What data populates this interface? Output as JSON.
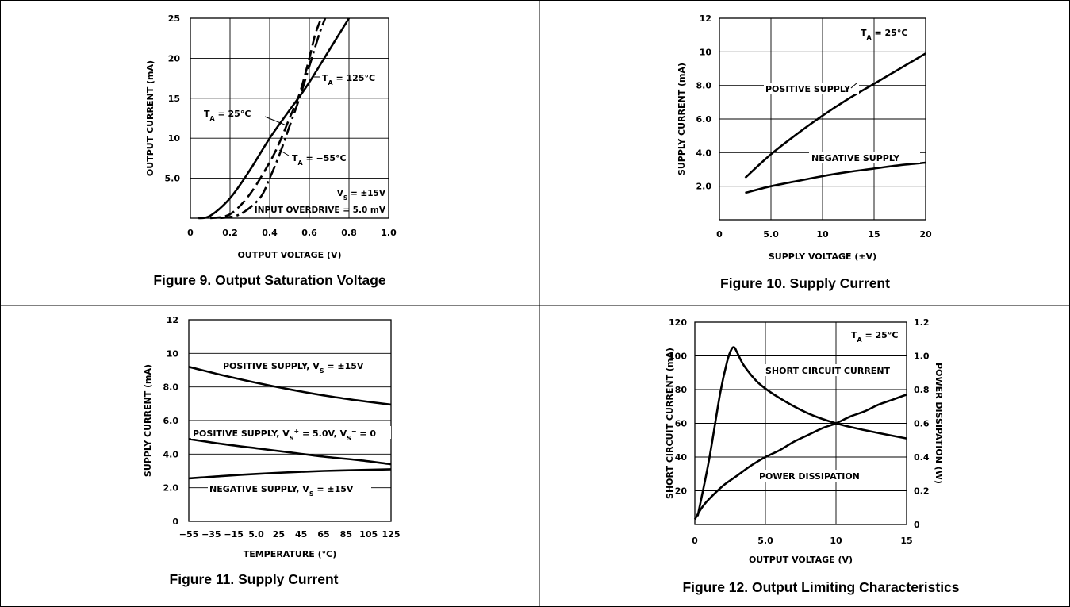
{
  "captions": {
    "fig9": "Figure 9. Output Saturation Voltage",
    "fig10": "Figure 10. Supply Current",
    "fig11": "Figure 11. Supply Current",
    "fig12": "Figure 12. Output Limiting Characteristics"
  },
  "chart_data": [
    {
      "id": "fig9",
      "type": "line",
      "xlabel": "OUTPUT VOLTAGE (V)",
      "ylabel": "OUTPUT CURRENT (mA)",
      "xlim": [
        0,
        1.0
      ],
      "ylim": [
        0,
        25
      ],
      "xticks": [
        0,
        0.2,
        0.4,
        0.6,
        0.8,
        1.0
      ],
      "xtick_labels": [
        "0",
        "0.2",
        "0.4",
        "0.6",
        "0.8",
        "1.0"
      ],
      "yticks": [
        5,
        10,
        15,
        20,
        25
      ],
      "ytick_labels": [
        "5.0",
        "10",
        "15",
        "20",
        "25"
      ],
      "series": [
        {
          "style": "solid",
          "x": [
            0.04,
            0.1,
            0.2,
            0.3,
            0.4,
            0.5,
            0.55,
            0.6,
            0.7,
            0.8
          ],
          "y": [
            0,
            0.3,
            2.5,
            6.0,
            10.0,
            13.5,
            15.2,
            17.0,
            21.0,
            25.0
          ]
        },
        {
          "style": "dashed",
          "x": [
            0.1,
            0.2,
            0.3,
            0.4,
            0.45,
            0.5,
            0.55,
            0.6,
            0.63,
            0.66
          ],
          "y": [
            0,
            0.5,
            3.0,
            7.0,
            9.5,
            12.5,
            15.5,
            20.0,
            23.0,
            25.0
          ]
        },
        {
          "style": "dashdot",
          "x": [
            0.15,
            0.25,
            0.35,
            0.4,
            0.45,
            0.5,
            0.55,
            0.6,
            0.65,
            0.68
          ],
          "y": [
            0,
            0.5,
            2.5,
            5.0,
            8.0,
            11.5,
            15.0,
            19.0,
            23.0,
            25.0
          ]
        }
      ],
      "annotations": {
        "t125_label": "= 125°C",
        "t25_label": "= 25°C",
        "tm55_label": "= −55°C",
        "ta": "T",
        "sub_a": "A",
        "vs_prefix": "V",
        "vs_sub": "S",
        "vs_value": " = ±15V",
        "overdrive": "INPUT OVERDRIVE = 5.0 mV"
      }
    },
    {
      "id": "fig10",
      "type": "line",
      "xlabel": "SUPPLY VOLTAGE (±V)",
      "ylabel": "SUPPLY CURRENT (mA)",
      "xlim": [
        0,
        20
      ],
      "ylim": [
        0,
        12
      ],
      "xticks": [
        0,
        5,
        10,
        15,
        20
      ],
      "xtick_labels": [
        "0",
        "5.0",
        "10",
        "15",
        "20"
      ],
      "yticks": [
        2,
        4,
        6,
        8,
        10,
        12
      ],
      "ytick_labels": [
        "2.0",
        "4.0",
        "6.0",
        "8.0",
        "10",
        "12"
      ],
      "series": [
        {
          "name": "POSITIVE SUPPLY",
          "x": [
            2.5,
            5,
            7.5,
            10,
            12.5,
            15,
            17.5,
            20
          ],
          "y": [
            2.5,
            3.9,
            5.1,
            6.2,
            7.2,
            8.1,
            9.0,
            9.9
          ]
        },
        {
          "name": "NEGATIVE SUPPLY",
          "x": [
            2.5,
            5,
            7.5,
            10,
            12.5,
            15,
            17.5,
            20
          ],
          "y": [
            1.6,
            2.0,
            2.3,
            2.6,
            2.85,
            3.05,
            3.25,
            3.4
          ]
        }
      ],
      "annotations": {
        "ta": "T",
        "sub_a": "A",
        "ta_value": " = 25°C"
      }
    },
    {
      "id": "fig11",
      "type": "line",
      "xlabel": "TEMPERATURE (°C)",
      "ylabel": "SUPPLY CURRENT (mA)",
      "xlim": [
        -55,
        125
      ],
      "ylim": [
        0,
        12
      ],
      "xticks": [
        -55,
        -35,
        -15,
        5,
        25,
        45,
        65,
        85,
        105,
        125
      ],
      "xtick_labels": [
        "−55",
        "−35",
        "−15",
        "5.0",
        "25",
        "45",
        "65",
        "85",
        "105",
        "125"
      ],
      "yticks": [
        0,
        2,
        4,
        6,
        8,
        10,
        12
      ],
      "ytick_labels": [
        "0",
        "2.0",
        "4.0",
        "6.0",
        "8.0",
        "10",
        "12"
      ],
      "series": [
        {
          "name": "POSITIVE SUPPLY, VS = ±15V",
          "x": [
            -55,
            -25,
            5,
            35,
            65,
            95,
            125
          ],
          "y": [
            9.2,
            8.7,
            8.25,
            7.85,
            7.5,
            7.2,
            6.95
          ]
        },
        {
          "name": "POSITIVE SUPPLY, VS+ = 5.0V, VS− = 0",
          "x": [
            -55,
            -25,
            5,
            35,
            65,
            95,
            125
          ],
          "y": [
            4.9,
            4.6,
            4.35,
            4.1,
            3.85,
            3.65,
            3.4
          ]
        },
        {
          "name": "NEGATIVE SUPPLY, VS = ±15V",
          "x": [
            -55,
            -25,
            5,
            35,
            65,
            95,
            125
          ],
          "y": [
            2.55,
            2.7,
            2.82,
            2.92,
            3.0,
            3.05,
            3.1
          ]
        }
      ],
      "annotations": {
        "pos15_a": "POSITIVE SUPPLY, V",
        "pos15_sub": "S",
        "pos15_b": " = ±15V",
        "pos5_a": "POSITIVE SUPPLY, V",
        "pos5_sub1": "S",
        "pos5_sup1": "+",
        "pos5_b": " = 5.0V, V",
        "pos5_sub2": "S",
        "pos5_sup2": "−",
        "pos5_c": " = 0",
        "neg15_a": "NEGATIVE SUPPLY, V",
        "neg15_sub": "S",
        "neg15_b": " = ±15V"
      }
    },
    {
      "id": "fig12",
      "type": "line",
      "xlabel": "OUTPUT VOLTAGE (V)",
      "ylabel": "SHORT CIRCUIT CURRENT (mA)",
      "y2label": "POWER DISSIPATION (W)",
      "xlim": [
        0,
        15
      ],
      "ylim": [
        0,
        120
      ],
      "y2lim": [
        0,
        1.2
      ],
      "xticks": [
        0,
        5,
        10,
        15
      ],
      "xtick_labels": [
        "0",
        "5.0",
        "10",
        "15"
      ],
      "yticks": [
        20,
        40,
        60,
        80,
        100,
        120
      ],
      "ytick_labels": [
        "20",
        "40",
        "60",
        "80",
        "100",
        "120"
      ],
      "y2ticks": [
        0,
        0.2,
        0.4,
        0.6,
        0.8,
        1.0,
        1.2
      ],
      "y2tick_labels": [
        "0",
        "0.2",
        "0.4",
        "0.6",
        "0.8",
        "1.0",
        "1.2"
      ],
      "series": [
        {
          "name": "SHORT CIRCUIT CURRENT",
          "axis": "left",
          "x": [
            0.2,
            1.0,
            1.8,
            2.3,
            2.6,
            2.8,
            3.0,
            3.5,
            4.5,
            6,
            8,
            10,
            12,
            15
          ],
          "y": [
            5,
            38,
            78,
            97,
            104,
            105,
            102,
            94,
            84,
            75,
            66,
            60,
            56,
            51
          ]
        },
        {
          "name": "POWER DISSIPATION",
          "axis": "right",
          "x": [
            0,
            0.5,
            1,
            2,
            3,
            4,
            5,
            6,
            7,
            8,
            9,
            10,
            11,
            12,
            13,
            14,
            15
          ],
          "y": [
            0.03,
            0.1,
            0.15,
            0.23,
            0.29,
            0.35,
            0.4,
            0.44,
            0.49,
            0.53,
            0.57,
            0.6,
            0.64,
            0.67,
            0.71,
            0.74,
            0.77
          ]
        }
      ],
      "annotations": {
        "ta": "T",
        "sub_a": "A",
        "ta_value": " = 25°C",
        "sc_label": "SHORT CIRCUIT CURRENT",
        "pd_label": "POWER DISSIPATION"
      }
    }
  ]
}
